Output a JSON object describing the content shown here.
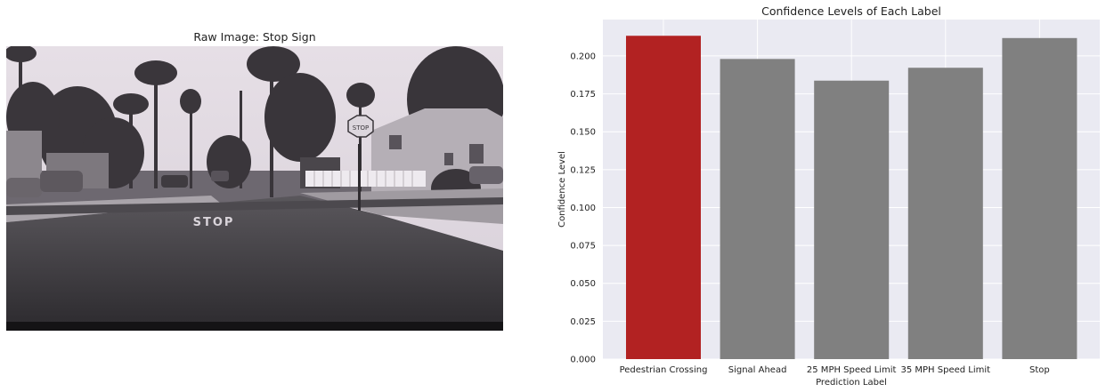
{
  "image_panel": {
    "title": "Raw Image: Stop Sign",
    "road_marking": "STOP",
    "sign_text": "STOP"
  },
  "colors": {
    "background_panel": "#EAEAF2",
    "grid": "#FFFFFF",
    "highlight_bar": "#B22222",
    "other_bars": "#808080"
  },
  "chart_data": {
    "type": "bar",
    "title": "Confidence Levels of Each Label",
    "xlabel": "Prediction Label",
    "ylabel": "Confidence Level",
    "categories": [
      "Pedestrian Crossing",
      "Signal Ahead",
      "25 MPH Speed Limit",
      "35 MPH Speed Limit",
      "Stop"
    ],
    "values": [
      0.2133,
      0.198,
      0.1837,
      0.1922,
      0.2118
    ],
    "highlight_index": 0,
    "yticks": [
      0.0,
      0.025,
      0.05,
      0.075,
      0.1,
      0.125,
      0.15,
      0.175,
      0.2
    ],
    "ytick_labels": [
      "0.000",
      "0.025",
      "0.050",
      "0.075",
      "0.100",
      "0.125",
      "0.150",
      "0.175",
      "0.200"
    ],
    "ylim": [
      0,
      0.224
    ],
    "grid": true,
    "legend": false
  }
}
